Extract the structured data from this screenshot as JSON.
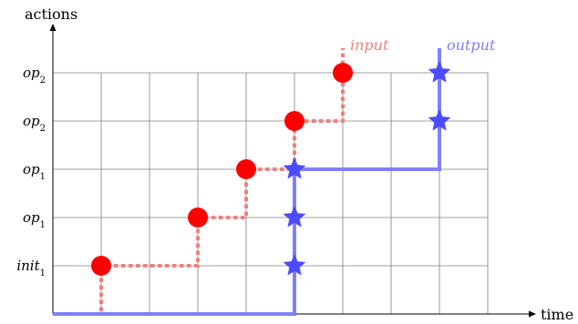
{
  "axes": {
    "y_label": "actions",
    "x_label": "time"
  },
  "legend": {
    "input": "input",
    "output": "output"
  },
  "rows": [
    {
      "label": "init",
      "sub": "1"
    },
    {
      "label": "op",
      "sub": "1"
    },
    {
      "label": "op",
      "sub": "1"
    },
    {
      "label": "op",
      "sub": "2"
    },
    {
      "label": "op",
      "sub": "2"
    }
  ],
  "colors": {
    "input_line": "#f08080",
    "input_marker": "#ff0000",
    "output_line": "#8080f8",
    "output_marker": "#4c4cff",
    "grid": "#808080",
    "axis": "#000000"
  },
  "chart_data": {
    "type": "line",
    "grid": true,
    "x_columns": 9,
    "y_rows": 5,
    "series": [
      {
        "name": "input",
        "marker": "circle",
        "style": "dashed",
        "points": [
          [
            1,
            1
          ],
          [
            3,
            2
          ],
          [
            4,
            3
          ],
          [
            5,
            4
          ],
          [
            6,
            5
          ]
        ]
      },
      {
        "name": "output",
        "marker": "star",
        "style": "solid",
        "points": [
          [
            5,
            1
          ],
          [
            5,
            2
          ],
          [
            5,
            3
          ],
          [
            8,
            4
          ],
          [
            8,
            5
          ]
        ]
      }
    ]
  }
}
